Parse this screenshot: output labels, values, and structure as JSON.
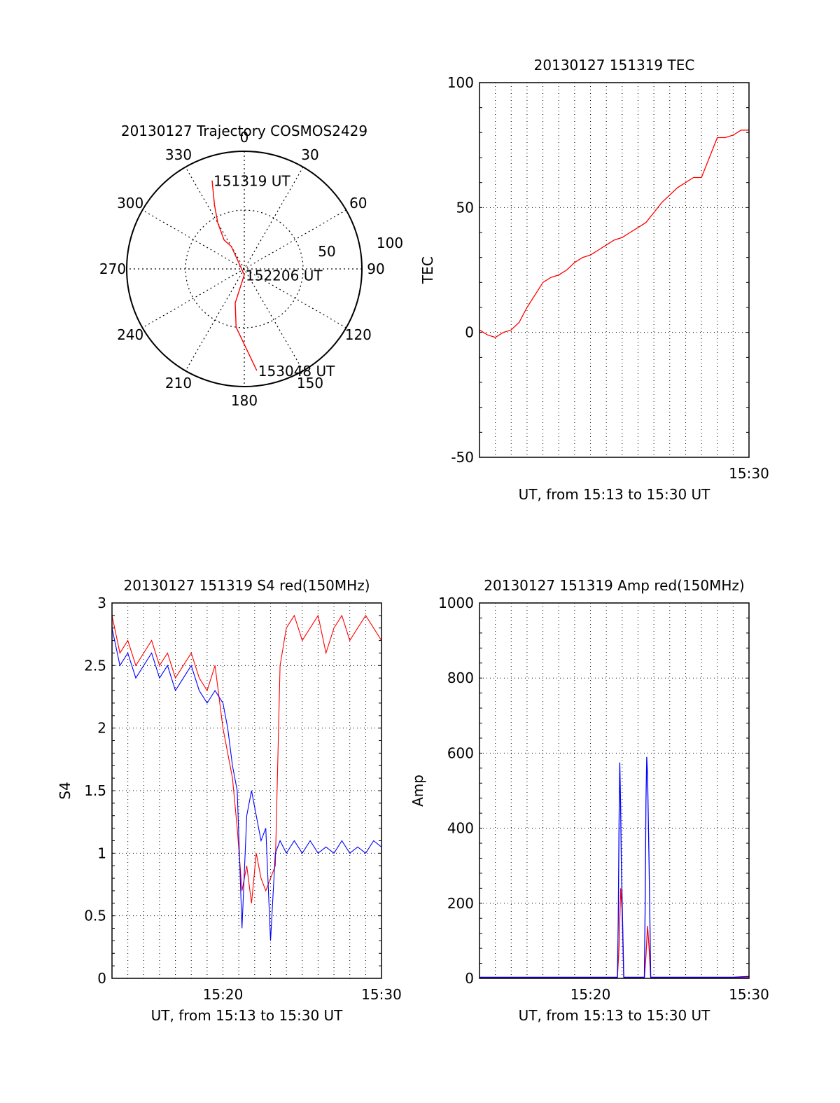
{
  "chart_data": [
    {
      "type": "polar",
      "title": "20130127 Trajectory COSMOS2429",
      "azimuth_labels": [
        "0",
        "30",
        "60",
        "90",
        "120",
        "150",
        "180",
        "210",
        "240",
        "270",
        "300",
        "330"
      ],
      "radial_labels": [
        "50",
        "100"
      ],
      "rlim": [
        0,
        100
      ],
      "grid": true,
      "trajectory_color": "#ff0000",
      "trajectory": [
        {
          "az": 340,
          "r": 80
        },
        {
          "az": 335,
          "r": 60
        },
        {
          "az": 330,
          "r": 45
        },
        {
          "az": 325,
          "r": 30
        },
        {
          "az": 330,
          "r": 22
        },
        {
          "az": 180,
          "r": 5
        },
        {
          "az": 195,
          "r": 30
        },
        {
          "az": 188,
          "r": 50
        },
        {
          "az": 173,
          "r": 87
        }
      ],
      "point_labels": [
        {
          "text": "151319 UT",
          "az": 340,
          "r": 80
        },
        {
          "text": "152206 UT",
          "az": 180,
          "r": 5
        },
        {
          "text": "153048 UT",
          "az": 173,
          "r": 87
        }
      ]
    },
    {
      "type": "line",
      "title": "20130127 151319 TEC",
      "xlabel": "UT, from 15:13 to 15:30 UT",
      "ylabel": "TEC",
      "xlim": [
        0,
        17
      ],
      "ylim": [
        -50,
        100
      ],
      "yticks": [
        -50,
        0,
        50,
        100
      ],
      "xtick_labels": [
        {
          "x": 17,
          "label": "15:30"
        }
      ],
      "grid": true,
      "series": [
        {
          "color": "#ff0000",
          "points": [
            [
              0,
              1
            ],
            [
              0.5,
              -1
            ],
            [
              1,
              -2
            ],
            [
              1.5,
              0
            ],
            [
              2,
              1
            ],
            [
              2.5,
              4
            ],
            [
              3,
              10
            ],
            [
              3.5,
              15
            ],
            [
              4,
              20
            ],
            [
              4.5,
              22
            ],
            [
              5,
              23
            ],
            [
              5.5,
              25
            ],
            [
              6,
              28
            ],
            [
              6.5,
              30
            ],
            [
              7,
              31
            ],
            [
              7.5,
              33
            ],
            [
              8,
              35
            ],
            [
              8.5,
              37
            ],
            [
              9,
              38
            ],
            [
              9.5,
              40
            ],
            [
              10,
              42
            ],
            [
              10.5,
              44
            ],
            [
              11,
              48
            ],
            [
              11.5,
              52
            ],
            [
              12,
              55
            ],
            [
              12.5,
              58
            ],
            [
              13,
              60
            ],
            [
              13.5,
              62
            ],
            [
              14,
              62
            ],
            [
              14.5,
              70
            ],
            [
              15,
              78
            ],
            [
              15.5,
              78
            ],
            [
              16,
              79
            ],
            [
              16.5,
              81
            ],
            [
              17,
              81
            ]
          ]
        }
      ]
    },
    {
      "type": "line",
      "title": "20130127 151319 S4 red(150MHz)",
      "xlabel": "UT, from 15:13 to 15:30 UT",
      "ylabel": "S4",
      "xlim": [
        0,
        17
      ],
      "ylim": [
        0,
        3
      ],
      "yticks": [
        0,
        0.5,
        1,
        1.5,
        2,
        2.5,
        3
      ],
      "ytick_labels": [
        "0",
        "0.5",
        "1",
        "1.5",
        "2",
        "2.5",
        "3"
      ],
      "xtick_labels": [
        {
          "x": 7,
          "label": "15:20"
        },
        {
          "x": 17,
          "label": "15:30"
        }
      ],
      "grid": true,
      "series": [
        {
          "color": "#ff0000",
          "points": [
            [
              0,
              2.9
            ],
            [
              0.5,
              2.6
            ],
            [
              1,
              2.7
            ],
            [
              1.5,
              2.5
            ],
            [
              2,
              2.6
            ],
            [
              2.5,
              2.7
            ],
            [
              3,
              2.5
            ],
            [
              3.5,
              2.6
            ],
            [
              4,
              2.4
            ],
            [
              4.5,
              2.5
            ],
            [
              5,
              2.6
            ],
            [
              5.5,
              2.4
            ],
            [
              6,
              2.3
            ],
            [
              6.5,
              2.5
            ],
            [
              7,
              2.0
            ],
            [
              7.3,
              1.8
            ],
            [
              7.6,
              1.6
            ],
            [
              7.9,
              1.2
            ],
            [
              8.2,
              0.7
            ],
            [
              8.5,
              0.9
            ],
            [
              8.8,
              0.6
            ],
            [
              9.1,
              1.0
            ],
            [
              9.4,
              0.8
            ],
            [
              9.7,
              0.7
            ],
            [
              10,
              0.8
            ],
            [
              10.3,
              0.9
            ],
            [
              10.6,
              2.5
            ],
            [
              11,
              2.8
            ],
            [
              11.5,
              2.9
            ],
            [
              12,
              2.7
            ],
            [
              12.5,
              2.8
            ],
            [
              13,
              2.9
            ],
            [
              13.5,
              2.6
            ],
            [
              14,
              2.8
            ],
            [
              14.5,
              2.9
            ],
            [
              15,
              2.7
            ],
            [
              15.5,
              2.8
            ],
            [
              16,
              2.9
            ],
            [
              16.5,
              2.8
            ],
            [
              17,
              2.7
            ]
          ]
        },
        {
          "color": "#0000ff",
          "points": [
            [
              0,
              2.8
            ],
            [
              0.5,
              2.5
            ],
            [
              1,
              2.6
            ],
            [
              1.5,
              2.4
            ],
            [
              2,
              2.5
            ],
            [
              2.5,
              2.6
            ],
            [
              3,
              2.4
            ],
            [
              3.5,
              2.5
            ],
            [
              4,
              2.3
            ],
            [
              4.5,
              2.4
            ],
            [
              5,
              2.5
            ],
            [
              5.5,
              2.3
            ],
            [
              6,
              2.2
            ],
            [
              6.5,
              2.3
            ],
            [
              7,
              2.2
            ],
            [
              7.3,
              2.0
            ],
            [
              7.6,
              1.7
            ],
            [
              7.9,
              1.5
            ],
            [
              8.2,
              0.4
            ],
            [
              8.5,
              1.3
            ],
            [
              8.8,
              1.5
            ],
            [
              9.1,
              1.3
            ],
            [
              9.4,
              1.1
            ],
            [
              9.7,
              1.2
            ],
            [
              10,
              0.3
            ],
            [
              10.3,
              1.0
            ],
            [
              10.6,
              1.1
            ],
            [
              11,
              1.0
            ],
            [
              11.5,
              1.1
            ],
            [
              12,
              1.0
            ],
            [
              12.5,
              1.1
            ],
            [
              13,
              1.0
            ],
            [
              13.5,
              1.05
            ],
            [
              14,
              1.0
            ],
            [
              14.5,
              1.1
            ],
            [
              15,
              1.0
            ],
            [
              15.5,
              1.05
            ],
            [
              16,
              1.0
            ],
            [
              16.5,
              1.1
            ],
            [
              17,
              1.05
            ]
          ]
        }
      ]
    },
    {
      "type": "line",
      "title": "20130127 151319 Amp red(150MHz)",
      "xlabel": "UT, from 15:13 to 15:30 UT",
      "ylabel": "Amp",
      "xlim": [
        0,
        17
      ],
      "ylim": [
        0,
        1000
      ],
      "yticks": [
        0,
        200,
        400,
        600,
        800,
        1000
      ],
      "xtick_labels": [
        {
          "x": 7,
          "label": "15:20"
        },
        {
          "x": 17,
          "label": "15:30"
        }
      ],
      "grid": true,
      "series": [
        {
          "color": "#ff0000",
          "points": [
            [
              0,
              2
            ],
            [
              8.7,
              2
            ],
            [
              8.8,
              80
            ],
            [
              8.9,
              240
            ],
            [
              9.0,
              180
            ],
            [
              9.1,
              2
            ],
            [
              10.4,
              2
            ],
            [
              10.5,
              60
            ],
            [
              10.6,
              140
            ],
            [
              10.7,
              80
            ],
            [
              10.8,
              2
            ],
            [
              17,
              2
            ]
          ]
        },
        {
          "color": "#0000ff",
          "points": [
            [
              0,
              3
            ],
            [
              8.7,
              3
            ],
            [
              8.75,
              150
            ],
            [
              8.8,
              400
            ],
            [
              8.85,
              575
            ],
            [
              8.9,
              460
            ],
            [
              8.95,
              300
            ],
            [
              9.05,
              100
            ],
            [
              9.1,
              3
            ],
            [
              10.4,
              3
            ],
            [
              10.45,
              200
            ],
            [
              10.5,
              470
            ],
            [
              10.55,
              590
            ],
            [
              10.6,
              540
            ],
            [
              10.7,
              300
            ],
            [
              10.8,
              3
            ],
            [
              16,
              3
            ],
            [
              17,
              5
            ]
          ]
        }
      ]
    }
  ]
}
